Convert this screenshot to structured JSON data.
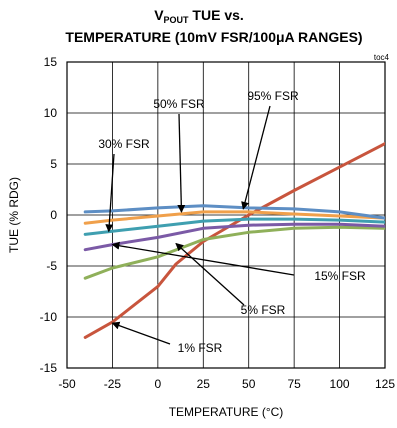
{
  "chart_data": {
    "type": "line",
    "title_main": "V",
    "title_sub": "POUT",
    "title_rest": " TUE vs.",
    "title_line2": "TEMPERATURE (10mV FSR/100μA RANGES)",
    "tag": "toc4",
    "xlabel": "TEMPERATURE (°C)",
    "ylabel": "TUE (% RDG)",
    "xlim": [
      -50,
      125
    ],
    "ylim": [
      -15,
      15
    ],
    "xticks": [
      -50,
      -25,
      0,
      25,
      50,
      75,
      100,
      125
    ],
    "yticks": [
      -15,
      -10,
      -5,
      0,
      5,
      10,
      15
    ],
    "grid": true,
    "series": [
      {
        "name": "1% FSR",
        "color": "#c8553d",
        "x": [
          -40,
          -25,
          0,
          10,
          25,
          50,
          75,
          100,
          125
        ],
        "y": [
          -12,
          -10.5,
          -7,
          -4.8,
          -2.6,
          0,
          2.4,
          4.7,
          7
        ]
      },
      {
        "name": "5% FSR",
        "color": "#8fb05a",
        "x": [
          -40,
          -25,
          0,
          25,
          50,
          75,
          100,
          125
        ],
        "y": [
          -6.2,
          -5.2,
          -4.1,
          -2.4,
          -1.7,
          -1.3,
          -1.2,
          -1.3
        ]
      },
      {
        "name": "15% FSR",
        "color": "#7b5aa6",
        "x": [
          -40,
          -25,
          0,
          25,
          50,
          75,
          100,
          125
        ],
        "y": [
          -3.4,
          -2.9,
          -2.2,
          -1.3,
          -1.0,
          -0.9,
          -0.9,
          -1.1
        ]
      },
      {
        "name": "30% FSR",
        "color": "#3f9fb0",
        "x": [
          -40,
          -25,
          0,
          25,
          50,
          75,
          100,
          125
        ],
        "y": [
          -1.9,
          -1.6,
          -1.1,
          -0.6,
          -0.4,
          -0.4,
          -0.5,
          -0.7
        ]
      },
      {
        "name": "50% FSR",
        "color": "#f0a04b",
        "x": [
          -40,
          -25,
          0,
          25,
          50,
          75,
          100,
          125
        ],
        "y": [
          -0.8,
          -0.5,
          -0.1,
          0.3,
          0.3,
          0.1,
          -0.1,
          -0.3
        ]
      },
      {
        "name": "95% FSR",
        "color": "#5d8ec4",
        "x": [
          -40,
          -25,
          0,
          25,
          50,
          75,
          100,
          125
        ],
        "y": [
          0.3,
          0.4,
          0.7,
          0.9,
          0.7,
          0.6,
          0.3,
          -0.3
        ]
      }
    ],
    "annotations": [
      {
        "text": "50% FSR",
        "target_x": 13,
        "target_y": 0.3
      },
      {
        "text": "95% FSR",
        "target_x": 47,
        "target_y": 0.6
      },
      {
        "text": "30% FSR",
        "target_x": -27,
        "target_y": -1.6
      },
      {
        "text": "15% FSR",
        "target_x": -25,
        "target_y": -2.9
      },
      {
        "text": "5% FSR",
        "target_x": 10,
        "target_y": -2.8
      },
      {
        "text": "1% FSR",
        "target_x": -25,
        "target_y": -10.6
      }
    ]
  }
}
